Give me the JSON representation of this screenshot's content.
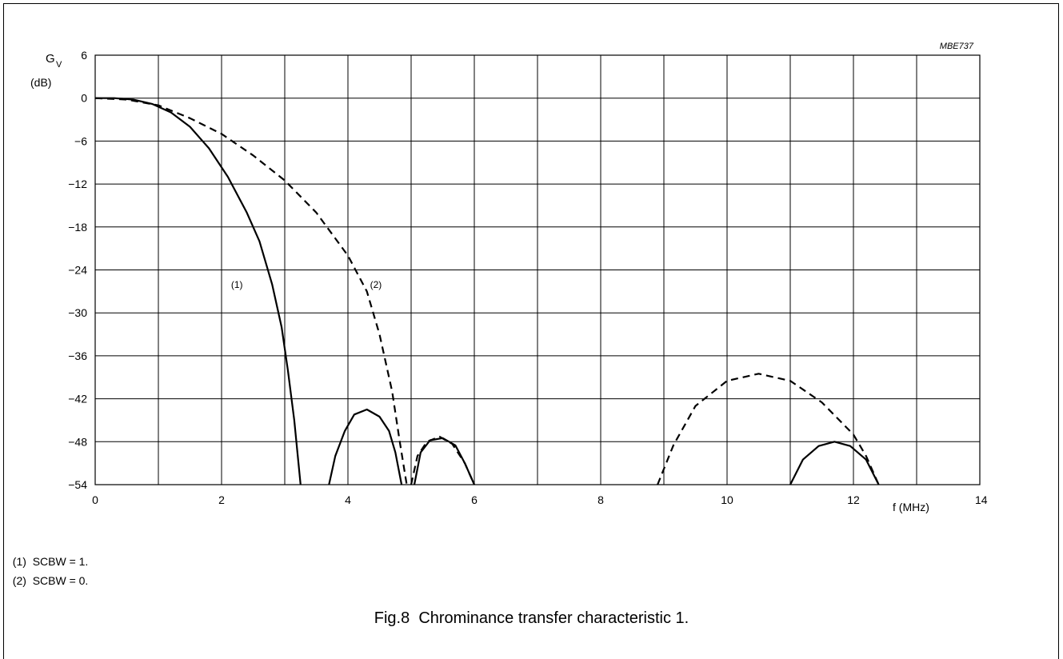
{
  "chart_data": {
    "type": "line",
    "code": "MBE737",
    "ylabel_main": "G",
    "ylabel_sub": "V",
    "ylabel_unit": "(dB)",
    "xlabel": "f  (MHz)",
    "xlim": [
      0,
      14
    ],
    "ylim": [
      -54,
      6
    ],
    "x_ticks": [
      0,
      2,
      4,
      6,
      8,
      10,
      12,
      14
    ],
    "y_ticks": [
      6,
      0,
      -6,
      -12,
      -18,
      -24,
      -30,
      -36,
      -42,
      -48,
      -54
    ],
    "x_tick_labels": [
      "0",
      "2",
      "4",
      "6",
      "8",
      "10",
      "12",
      "14"
    ],
    "y_tick_labels": [
      "6",
      "0",
      "−6",
      "−12",
      "−18",
      "−24",
      "−30",
      "−36",
      "−42",
      "−48",
      "−54"
    ],
    "grid_x_step": 1,
    "grid_y_step": 6,
    "grid": true,
    "series": [
      {
        "name": "(1)",
        "style": "solid",
        "label_at": [
          2.15,
          -26.5
        ],
        "segments": [
          [
            [
              0,
              0
            ],
            [
              0.3,
              0
            ],
            [
              0.6,
              -0.2
            ],
            [
              0.9,
              -0.8
            ],
            [
              1.2,
              -2.0
            ],
            [
              1.5,
              -4.0
            ],
            [
              1.8,
              -7.0
            ],
            [
              2.1,
              -11.0
            ],
            [
              2.4,
              -16.0
            ],
            [
              2.6,
              -20.0
            ],
            [
              2.8,
              -26.0
            ],
            [
              2.95,
              -32.0
            ],
            [
              3.05,
              -38.0
            ],
            [
              3.15,
              -45.0
            ],
            [
              3.25,
              -54.0
            ]
          ],
          [
            [
              3.7,
              -54
            ],
            [
              3.8,
              -50
            ],
            [
              3.95,
              -46.5
            ],
            [
              4.1,
              -44.2
            ],
            [
              4.3,
              -43.5
            ],
            [
              4.5,
              -44.5
            ],
            [
              4.65,
              -46.5
            ],
            [
              4.75,
              -49.5
            ],
            [
              4.85,
              -54
            ]
          ],
          [
            [
              5.05,
              -54
            ],
            [
              5.15,
              -49.5
            ],
            [
              5.3,
              -47.8
            ],
            [
              5.5,
              -47.5
            ],
            [
              5.7,
              -48.5
            ],
            [
              5.85,
              -51
            ],
            [
              6.0,
              -54
            ]
          ],
          [
            [
              11.0,
              -54
            ],
            [
              11.2,
              -50.5
            ],
            [
              11.45,
              -48.6
            ],
            [
              11.7,
              -48.0
            ],
            [
              11.95,
              -48.6
            ],
            [
              12.2,
              -50.5
            ],
            [
              12.4,
              -54
            ]
          ]
        ]
      },
      {
        "name": "(2)",
        "style": "dashed",
        "label_at": [
          4.35,
          -26.5
        ],
        "segments": [
          [
            [
              0,
              0
            ],
            [
              0.5,
              -0.2
            ],
            [
              1.0,
              -1.0
            ],
            [
              1.5,
              -2.8
            ],
            [
              2.0,
              -5.0
            ],
            [
              2.5,
              -8.0
            ],
            [
              3.0,
              -11.5
            ],
            [
              3.5,
              -16.0
            ],
            [
              4.0,
              -22.0
            ],
            [
              4.3,
              -27.0
            ],
            [
              4.5,
              -33.0
            ],
            [
              4.7,
              -41.0
            ],
            [
              4.82,
              -48.0
            ],
            [
              4.93,
              -54.0
            ]
          ],
          [
            [
              5.0,
              -54
            ],
            [
              5.1,
              -50
            ],
            [
              5.25,
              -48
            ],
            [
              5.45,
              -47.3
            ],
            [
              5.65,
              -48.3
            ],
            [
              5.85,
              -51
            ],
            [
              6.0,
              -54
            ]
          ],
          [
            [
              8.9,
              -54
            ],
            [
              9.15,
              -48.5
            ],
            [
              9.5,
              -43.0
            ],
            [
              10.0,
              -39.5
            ],
            [
              10.5,
              -38.5
            ],
            [
              11.0,
              -39.5
            ],
            [
              11.5,
              -42.5
            ],
            [
              12.0,
              -47.0
            ],
            [
              12.2,
              -50.0
            ],
            [
              12.4,
              -54.0
            ]
          ]
        ]
      }
    ]
  },
  "notes": [
    {
      "id": "(1)",
      "text": "SCBW = 1."
    },
    {
      "id": "(2)",
      "text": "SCBW = 0."
    }
  ],
  "caption": "Fig.8  Chrominance transfer characteristic 1."
}
